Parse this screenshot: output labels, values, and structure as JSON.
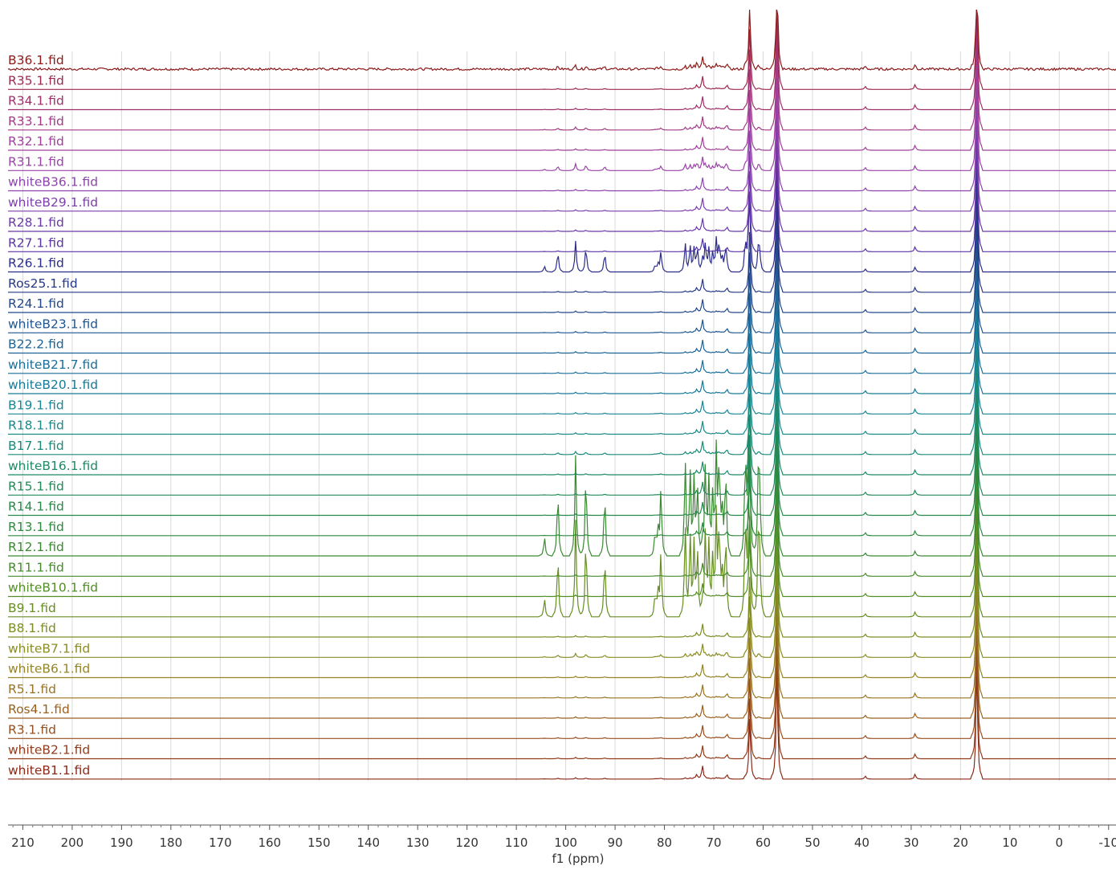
{
  "chart_data": {
    "type": "line",
    "stacked_spectra": true,
    "xlabel": "f1 (ppm)",
    "xlim": [
      213,
      -11.5
    ],
    "x_reversed": true,
    "grid": true,
    "tick_values": [
      210,
      200,
      190,
      180,
      170,
      160,
      150,
      140,
      130,
      120,
      110,
      100,
      90,
      80,
      70,
      60,
      50,
      40,
      30,
      20,
      10,
      0,
      -10
    ],
    "tick_labels": [
      "210",
      "200",
      "190",
      "180",
      "170",
      "160",
      "150",
      "140",
      "130",
      "120",
      "110",
      "100",
      "90",
      "80",
      "70",
      "60",
      "50",
      "40",
      "30",
      "20",
      "10",
      "0",
      "-10"
    ],
    "common_peaks": [
      {
        "ppm": 72.3,
        "h": 0.7
      },
      {
        "ppm": 62.7,
        "h": 3.2
      },
      {
        "ppm": 57.2,
        "h": 6.0
      },
      {
        "ppm": 16.7,
        "h": 6.0
      },
      {
        "ppm": 29.2,
        "h": 0.25
      },
      {
        "ppm": 39.3,
        "h": 0.15
      },
      {
        "ppm": 67.3,
        "h": 0.2
      },
      {
        "ppm": 73.5,
        "h": 0.2
      }
    ],
    "series": [
      {
        "name": "B36.1.fid",
        "color": "#8b1a1a",
        "sugar": 0.2,
        "noisy": true
      },
      {
        "name": "R35.1.fid",
        "color": "#9c2a4e",
        "sugar": 0.05
      },
      {
        "name": "R34.1.fid",
        "color": "#a0306a",
        "sugar": 0.05
      },
      {
        "name": "R33.1.fid",
        "color": "#a33a86",
        "sugar": 0.15
      },
      {
        "name": "R32.1.fid",
        "color": "#a0409a",
        "sugar": 0.1
      },
      {
        "name": "R31.1.fid",
        "color": "#9a44a8",
        "sugar": 0.35
      },
      {
        "name": "whiteB36.1.fid",
        "color": "#8e44ad",
        "sugar": 0.05
      },
      {
        "name": "whiteB29.1.fid",
        "color": "#7c3fab",
        "sugar": 0.08
      },
      {
        "name": "R28.1.fid",
        "color": "#6a39a8",
        "sugar": 0.05
      },
      {
        "name": "R27.1.fid",
        "color": "#5935a6",
        "sugar": 0.05
      },
      {
        "name": "R26.1.fid",
        "color": "#2b2d8a",
        "sugar": 1.6
      },
      {
        "name": "Ros25.1.fid",
        "color": "#263985",
        "sugar": 0.05
      },
      {
        "name": "R24.1.fid",
        "color": "#23488a",
        "sugar": 0.05
      },
      {
        "name": "whiteB23.1.fid",
        "color": "#1f5690",
        "sugar": 0.05
      },
      {
        "name": "B22.2.fid",
        "color": "#1c6394",
        "sugar": 0.05
      },
      {
        "name": "whiteB21.7.fid",
        "color": "#1a6f98",
        "sugar": 0.05
      },
      {
        "name": "whiteB20.1.fid",
        "color": "#197a98",
        "sugar": 0.05
      },
      {
        "name": "B19.1.fid",
        "color": "#1a8595",
        "sugar": 0.05
      },
      {
        "name": "R18.1.fid",
        "color": "#1b8a88",
        "sugar": 0.05
      },
      {
        "name": "B17.1.fid",
        "color": "#1c8a78",
        "sugar": 0.15
      },
      {
        "name": "whiteB16.1.fid",
        "color": "#1f8a68",
        "sugar": 0.05
      },
      {
        "name": "R15.1.fid",
        "color": "#238a58",
        "sugar": 0.05
      },
      {
        "name": "R14.1.fid",
        "color": "#288a4a",
        "sugar": 0.05
      },
      {
        "name": "R13.1.fid",
        "color": "#2e8a3e",
        "sugar": 0.05
      },
      {
        "name": "R12.1.fid",
        "color": "#3a8a32",
        "sugar": 5.2
      },
      {
        "name": "R11.1.fid",
        "color": "#468c2c",
        "sugar": 0.05
      },
      {
        "name": "whiteB10.1.fid",
        "color": "#548e26",
        "sugar": 0.05
      },
      {
        "name": "B9.1.fid",
        "color": "#668e22",
        "sugar": 5.0
      },
      {
        "name": "B8.1.fid",
        "color": "#7a8e22",
        "sugar": 0.05
      },
      {
        "name": "whiteB7.1.fid",
        "color": "#8a8c24",
        "sugar": 0.2
      },
      {
        "name": "whiteB6.1.fid",
        "color": "#968426",
        "sugar": 0.05
      },
      {
        "name": "R5.1.fid",
        "color": "#9a7424",
        "sugar": 0.05
      },
      {
        "name": "Ros4.1.fid",
        "color": "#9a6220",
        "sugar": 0.05
      },
      {
        "name": "R3.1.fid",
        "color": "#974e1e",
        "sugar": 0.05
      },
      {
        "name": "whiteB2.1.fid",
        "color": "#923c1c",
        "sugar": 0.05
      },
      {
        "name": "whiteB1.1.fid",
        "color": "#8c2a1a",
        "sugar": 0.05
      }
    ],
    "sugar_peaks": [
      {
        "ppm": 104.3,
        "h": 0.25
      },
      {
        "ppm": 101.6,
        "h": 0.9
      },
      {
        "ppm": 98.0,
        "h": 1.35
      },
      {
        "ppm": 95.9,
        "h": 1.15
      },
      {
        "ppm": 92.1,
        "h": 0.85
      },
      {
        "ppm": 81.9,
        "h": 0.3
      },
      {
        "ppm": 81.3,
        "h": 0.35
      },
      {
        "ppm": 80.7,
        "h": 0.9
      },
      {
        "ppm": 75.8,
        "h": 1.3
      },
      {
        "ppm": 74.8,
        "h": 1.15
      },
      {
        "ppm": 74.0,
        "h": 1.0
      },
      {
        "ppm": 73.3,
        "h": 0.9
      },
      {
        "ppm": 71.7,
        "h": 1.25
      },
      {
        "ppm": 71.0,
        "h": 1.0
      },
      {
        "ppm": 70.2,
        "h": 0.85
      },
      {
        "ppm": 69.5,
        "h": 1.4
      },
      {
        "ppm": 68.9,
        "h": 1.3
      },
      {
        "ppm": 68.3,
        "h": 0.6
      },
      {
        "ppm": 67.6,
        "h": 1.2
      },
      {
        "ppm": 63.6,
        "h": 1.35
      },
      {
        "ppm": 63.0,
        "h": 1.3
      },
      {
        "ppm": 61.0,
        "h": 0.95
      },
      {
        "ppm": 60.7,
        "h": 0.9
      }
    ]
  }
}
